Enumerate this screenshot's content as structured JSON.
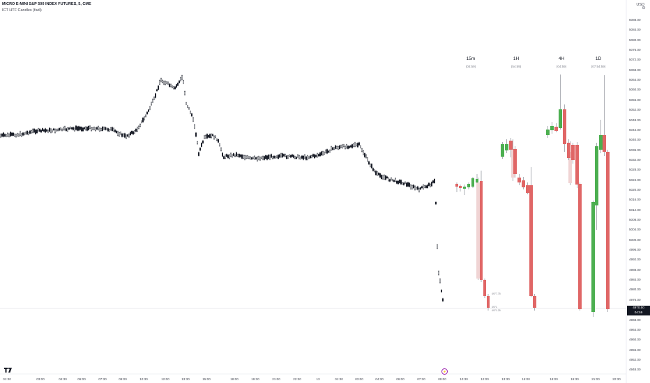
{
  "header": {
    "symbol_title": "MICRO E-MINI S&P 500 INDEX FUTURES, 5, CME",
    "indicator_name": "ICT HTF Candles (fadi)",
    "currency": "USD"
  },
  "htf_panels": [
    {
      "label": "15m",
      "countdown": "(04:59)"
    },
    {
      "label": "1H",
      "countdown": "(54:59)"
    },
    {
      "label": "4H",
      "countdown": "(04:59)"
    },
    {
      "label": "1D",
      "countdown": "(07:54:59)"
    }
  ],
  "price_axis": {
    "ticks": [
      "5088.00",
      "5084.00",
      "5080.00",
      "5076.00",
      "5072.00",
      "5068.00",
      "5064.00",
      "5060.00",
      "5056.00",
      "5052.00",
      "5048.00",
      "5044.00",
      "5040.00",
      "5036.00",
      "5032.00",
      "5028.00",
      "5024.00",
      "5020.00",
      "5016.00",
      "5012.00",
      "5008.00",
      "5004.00",
      "5000.00",
      "4996.00",
      "4992.00",
      "4988.00",
      "4984.00",
      "4980.00",
      "4976.00",
      "4972.00",
      "4968.00",
      "4964.00",
      "4960.00",
      "4956.00",
      "4952.00",
      "4948.00"
    ],
    "current_price": "4970.50",
    "current_countdown": "04:59"
  },
  "time_axis": {
    "ticks": [
      "01:30",
      "03:00",
      "04:30",
      "06:00",
      "07:30",
      "09:00",
      "10:30",
      "12:00",
      "13:30",
      "15:00",
      "18:00",
      "19:30",
      "21:00",
      "22:30",
      "13",
      "01:30",
      "03:00",
      "04:30",
      "06:00",
      "07:30",
      "09:00",
      "10:30",
      "12:00",
      "13:30",
      "15:00",
      "18:00",
      "19:30",
      "21:00",
      "22:30"
    ]
  },
  "mini_labels": [
    "4977.75",
    "4971",
    "4971.25"
  ],
  "colors": {
    "bull": "#4caf50",
    "bear": "#e06666",
    "wick": "#787b86",
    "ghost": "#f0d4d4",
    "price_line": "#d1d4dc"
  }
}
